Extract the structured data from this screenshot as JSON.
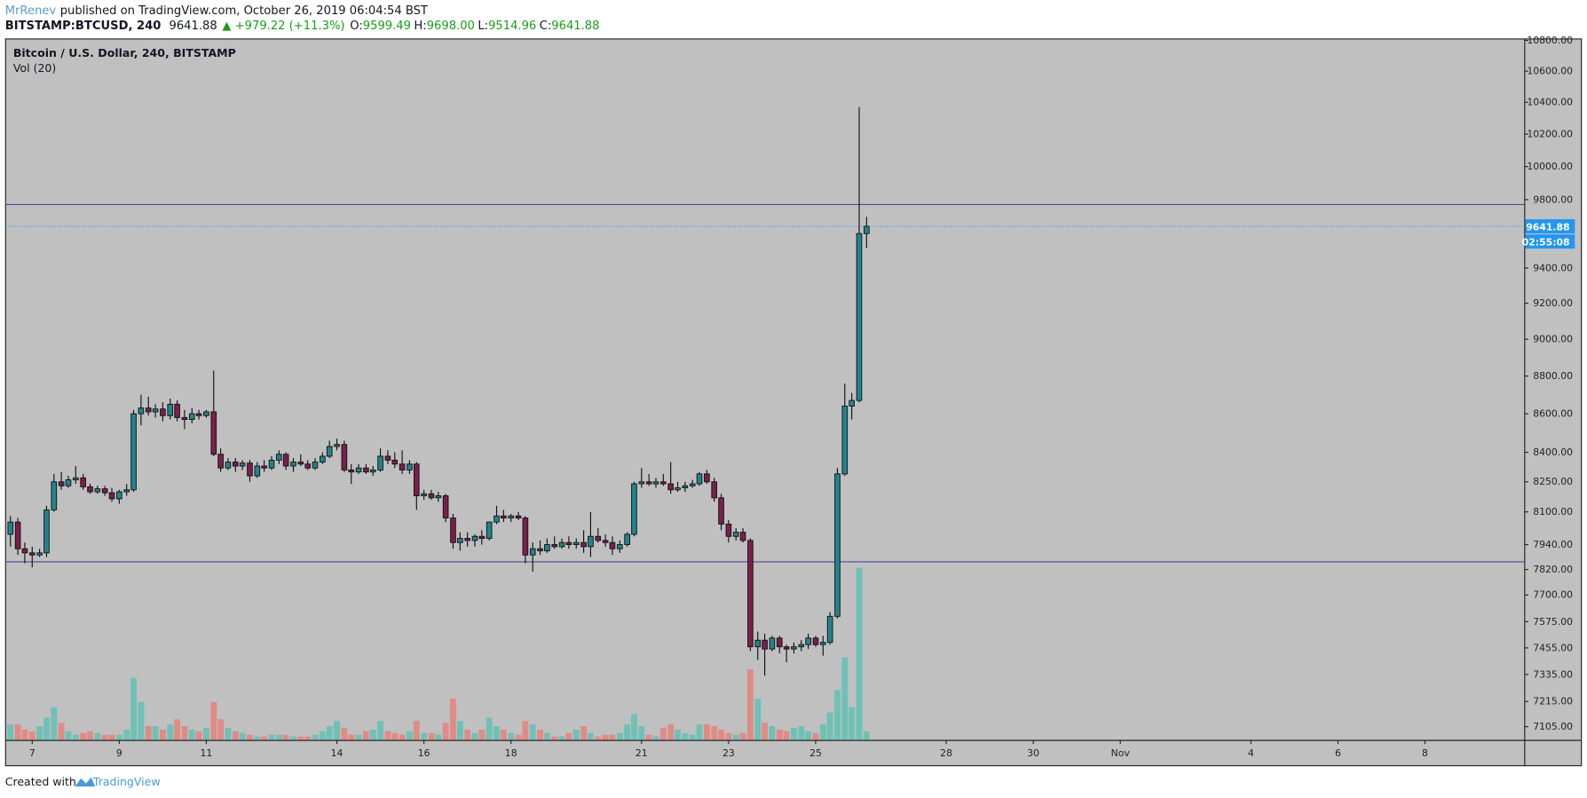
{
  "header": {
    "author": "MrRenev",
    "published": "published on TradingView.com, October 26, 2019 06:04:54 BST",
    "symbol": "BITSTAMP:BTCUSD, 240",
    "last": "9641.88",
    "change": "▲ +979.22 (+11.3%)",
    "ohlc": [
      {
        "label": "O:",
        "value": "9599.49"
      },
      {
        "label": "H:",
        "value": "9698.00"
      },
      {
        "label": "L:",
        "value": "9514.96"
      },
      {
        "label": "C:",
        "value": "9641.88"
      }
    ]
  },
  "chart_data": {
    "type": "candlestick",
    "title": "Bitcoin / U.S. Dollar, 240, BITSTAMP",
    "subtitle": "Vol (20)",
    "x": [
      6.5,
      6.67,
      6.83,
      7,
      7.17,
      7.33,
      7.5,
      7.67,
      7.83,
      8,
      8.17,
      8.33,
      8.5,
      8.67,
      8.83,
      9,
      9.17,
      9.33,
      9.5,
      9.67,
      9.83,
      10,
      10.17,
      10.33,
      10.5,
      10.67,
      10.83,
      11,
      11.17,
      11.33,
      11.5,
      11.67,
      11.83,
      12,
      12.17,
      12.33,
      12.5,
      12.67,
      12.83,
      13,
      13.17,
      13.33,
      13.5,
      13.67,
      13.83,
      14,
      14.17,
      14.33,
      14.5,
      14.67,
      14.83,
      15,
      15.17,
      15.33,
      15.5,
      15.67,
      15.83,
      16,
      16.17,
      16.33,
      16.5,
      16.67,
      16.83,
      17,
      17.17,
      17.33,
      17.5,
      17.67,
      17.83,
      18,
      18.17,
      18.33,
      18.5,
      18.67,
      18.83,
      19,
      19.17,
      19.33,
      19.5,
      19.67,
      19.83,
      20,
      20.17,
      20.33,
      20.5,
      20.67,
      20.83,
      21,
      21.17,
      21.33,
      21.5,
      21.67,
      21.83,
      22,
      22.17,
      22.33,
      22.5,
      22.67,
      22.83,
      23,
      23.17,
      23.33,
      23.5,
      23.67,
      23.83,
      24,
      24.17,
      24.33,
      24.5,
      24.67,
      24.83,
      25,
      25.17,
      25.33,
      25.5,
      25.67,
      25.83,
      26,
      26.17
    ],
    "open": [
      7990,
      8050,
      7920,
      7900,
      7890,
      7900,
      8110,
      8250,
      8230,
      8260,
      8270,
      8225,
      8200,
      8215,
      8195,
      8165,
      8200,
      8210,
      8600,
      8630,
      8610,
      8625,
      8590,
      8650,
      8580,
      8570,
      8600,
      8590,
      8610,
      8390,
      8320,
      8350,
      8330,
      8345,
      8280,
      8330,
      8320,
      8360,
      8390,
      8330,
      8350,
      8340,
      8320,
      8350,
      8380,
      8430,
      8440,
      8310,
      8300,
      8320,
      8300,
      8310,
      8380,
      8360,
      8340,
      8310,
      8340,
      8180,
      8190,
      8170,
      8180,
      8070,
      7950,
      7970,
      7960,
      7980,
      7970,
      8050,
      8080,
      8070,
      8080,
      8070,
      7890,
      7920,
      7910,
      7940,
      7930,
      7950,
      7940,
      7950,
      7930,
      7980,
      7960,
      7950,
      7920,
      7940,
      7990,
      8240,
      8250,
      8240,
      8250,
      8240,
      8210,
      8220,
      8230,
      8240,
      8290,
      8250,
      8170,
      8040,
      7980,
      8000,
      7960,
      7460,
      7490,
      7450,
      7500,
      7460,
      7450,
      7460,
      7470,
      7500,
      7470,
      7480,
      7600,
      8290,
      8640,
      8670,
      9599.49
    ],
    "high": [
      8080,
      8070,
      7950,
      7930,
      7920,
      8130,
      8290,
      8300,
      8280,
      8330,
      8290,
      8240,
      8230,
      8230,
      8220,
      8210,
      8240,
      8620,
      8700,
      8690,
      8650,
      8660,
      8680,
      8670,
      8620,
      8630,
      8620,
      8620,
      8830,
      8420,
      8370,
      8370,
      8360,
      8360,
      8350,
      8360,
      8380,
      8410,
      8400,
      8370,
      8390,
      8360,
      8370,
      8400,
      8460,
      8470,
      8460,
      8340,
      8340,
      8340,
      8330,
      8420,
      8410,
      8400,
      8410,
      8360,
      8350,
      8210,
      8210,
      8200,
      8190,
      8090,
      8000,
      8000,
      7990,
      8010,
      8050,
      8130,
      8110,
      8090,
      8100,
      8080,
      7950,
      7960,
      7970,
      7980,
      7970,
      7980,
      7970,
      8010,
      8100,
      8020,
      7990,
      7980,
      7960,
      8000,
      8250,
      8320,
      8290,
      8270,
      8290,
      8350,
      8250,
      8250,
      8260,
      8300,
      8310,
      8270,
      8190,
      8060,
      8020,
      8020,
      7970,
      7530,
      7520,
      7510,
      7510,
      7470,
      7480,
      7490,
      7520,
      7510,
      7510,
      7620,
      8320,
      8760,
      8710,
      10370,
      9698
    ],
    "low": [
      7930,
      7890,
      7850,
      7830,
      7880,
      7880,
      8100,
      8210,
      8220,
      8240,
      8210,
      8190,
      8190,
      8180,
      8150,
      8140,
      8180,
      8200,
      8540,
      8590,
      8580,
      8560,
      8570,
      8560,
      8520,
      8550,
      8570,
      8580,
      8380,
      8300,
      8310,
      8300,
      8310,
      8250,
      8270,
      8300,
      8310,
      8340,
      8310,
      8300,
      8330,
      8310,
      8310,
      8340,
      8370,
      8410,
      8300,
      8240,
      8290,
      8290,
      8280,
      8300,
      8340,
      8320,
      8290,
      8290,
      8110,
      8160,
      8160,
      8150,
      8050,
      7920,
      7910,
      7930,
      7930,
      7940,
      7960,
      8040,
      8050,
      8050,
      8060,
      7850,
      7810,
      7890,
      7900,
      7920,
      7920,
      7920,
      7920,
      7900,
      7880,
      7950,
      7930,
      7890,
      7900,
      7930,
      7980,
      8220,
      8230,
      8220,
      8230,
      8190,
      8200,
      8200,
      8220,
      8230,
      8240,
      8150,
      8010,
      7950,
      7960,
      7950,
      7440,
      7400,
      7330,
      7440,
      7430,
      7390,
      7430,
      7440,
      7450,
      7460,
      7420,
      7470,
      7590,
      8280,
      8570,
      8660,
      9514.96
    ],
    "close": [
      8050,
      7920,
      7900,
      7890,
      7900,
      8110,
      8250,
      8230,
      8260,
      8270,
      8225,
      8200,
      8215,
      8195,
      8165,
      8200,
      8210,
      8600,
      8630,
      8610,
      8625,
      8590,
      8650,
      8580,
      8570,
      8600,
      8590,
      8610,
      8390,
      8320,
      8350,
      8330,
      8345,
      8280,
      8330,
      8320,
      8360,
      8390,
      8330,
      8350,
      8340,
      8320,
      8350,
      8380,
      8430,
      8440,
      8310,
      8300,
      8320,
      8300,
      8310,
      8380,
      8360,
      8340,
      8310,
      8340,
      8180,
      8190,
      8170,
      8180,
      8070,
      7950,
      7970,
      7960,
      7980,
      7970,
      8050,
      8080,
      8070,
      8080,
      8070,
      7890,
      7920,
      7910,
      7940,
      7930,
      7950,
      7940,
      7950,
      7930,
      7980,
      7960,
      7950,
      7920,
      7940,
      7990,
      8240,
      8250,
      8240,
      8250,
      8240,
      8210,
      8220,
      8230,
      8240,
      8290,
      8250,
      8170,
      8040,
      7980,
      8000,
      7960,
      7460,
      7490,
      7450,
      7500,
      7460,
      7450,
      7460,
      7470,
      7500,
      7470,
      7480,
      7600,
      8290,
      8640,
      8670,
      9599.49,
      9641.88
    ],
    "volume": [
      9,
      9,
      6,
      5,
      8,
      13,
      19,
      10,
      5,
      3,
      4,
      5,
      4,
      3,
      3,
      3,
      6,
      36,
      22,
      8,
      8,
      6,
      9,
      12,
      8,
      6,
      5,
      7,
      22,
      12,
      7,
      5,
      4,
      3,
      2,
      2,
      3,
      3,
      3,
      2,
      2,
      2,
      3,
      5,
      8,
      11,
      7,
      3,
      3,
      5,
      6,
      11,
      5,
      4,
      3,
      5,
      11,
      4,
      4,
      3,
      10,
      24,
      11,
      6,
      4,
      6,
      13,
      8,
      6,
      4,
      3,
      11,
      9,
      6,
      4,
      2,
      2,
      4,
      6,
      8,
      4,
      2,
      3,
      3,
      4,
      9,
      15,
      8,
      3,
      2,
      7,
      9,
      6,
      4,
      3,
      9,
      9,
      8,
      6,
      4,
      3,
      4,
      41,
      24,
      10,
      8,
      6,
      5,
      7,
      8,
      5,
      4,
      9,
      16,
      29,
      48,
      19,
      100,
      5
    ],
    "colors": {
      "up": "#22838d",
      "down": "#7a1f4b",
      "volume_up": "#6fc1b6",
      "volume_down": "#e18b87",
      "background": "#c0c0c0"
    },
    "log": true,
    "ylim": [
      7048,
      10813
    ],
    "yticks": [
      {
        "value": 10800,
        "label": "10800.00"
      },
      {
        "value": 10600,
        "label": "10600.00"
      },
      {
        "value": 10400,
        "label": "10400.00"
      },
      {
        "value": 10200,
        "label": "10200.00"
      },
      {
        "value": 10000,
        "label": "10000.00"
      },
      {
        "value": 9800,
        "label": "9800.00"
      },
      {
        "value": 9400,
        "label": "9400.00"
      },
      {
        "value": 9200,
        "label": "9200.00"
      },
      {
        "value": 9000,
        "label": "9000.00"
      },
      {
        "value": 8800,
        "label": "8800.00"
      },
      {
        "value": 8600,
        "label": "8600.00"
      },
      {
        "value": 8400,
        "label": "8400.00"
      },
      {
        "value": 8250,
        "label": "8250.00"
      },
      {
        "value": 8100,
        "label": "8100.00"
      },
      {
        "value": 7940,
        "label": "7940.00"
      },
      {
        "value": 7820,
        "label": "7820.00"
      },
      {
        "value": 7700,
        "label": "7700.00"
      },
      {
        "value": 7575,
        "label": "7575.00"
      },
      {
        "value": 7455,
        "label": "7455.00"
      },
      {
        "value": 7335,
        "label": "7335.00"
      },
      {
        "value": 7215,
        "label": "7215.00"
      },
      {
        "value": 7105,
        "label": "7105.00"
      }
    ],
    "xlim": [
      6.4,
      41.28
    ],
    "xticks": [
      7,
      9,
      11,
      14,
      16,
      18,
      21,
      23,
      25,
      28,
      30,
      {
        "value": 32,
        "label": "Nov"
      },
      {
        "value": 35,
        "label": "4"
      },
      {
        "value": 37,
        "label": "6"
      },
      {
        "value": 39,
        "label": "8"
      }
    ],
    "horizontal_lines": [
      {
        "value": 9771,
        "color": "#4f4a9e"
      },
      {
        "value": 7857,
        "color": "#4f4a9e"
      }
    ],
    "last_price": 9641.88,
    "last_price_color": "#2196f3",
    "countdown": "02:55:08"
  },
  "footer": {
    "text": "Created with",
    "brand": "TradingView"
  }
}
